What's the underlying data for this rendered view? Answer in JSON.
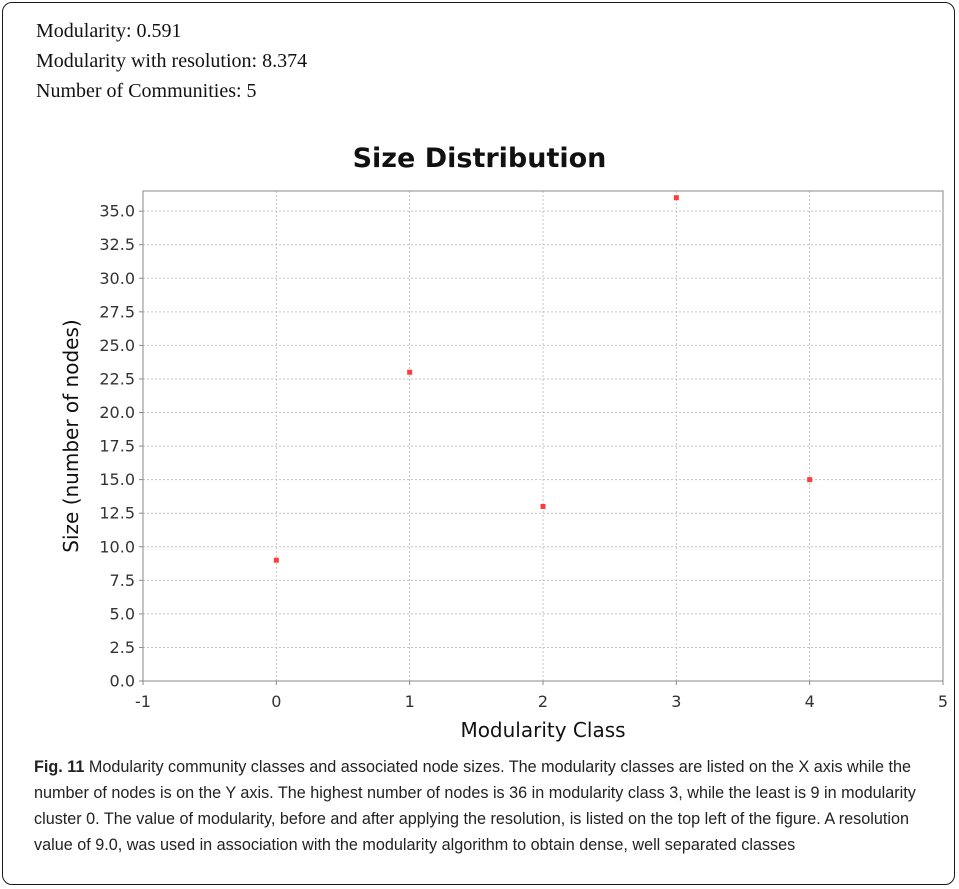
{
  "stats": {
    "modularity": "Modularity: 0.591",
    "modularity_resolution": "Modularity with resolution: 8.374",
    "communities": "Number of Communities: 5"
  },
  "chart_data": {
    "type": "scatter",
    "title": "Size Distribution",
    "xlabel": "Modularity Class",
    "ylabel": "Size (number of nodes)",
    "xlim": [
      -1,
      5
    ],
    "ylim": [
      0,
      36.5
    ],
    "xticks": [
      -1,
      0,
      1,
      2,
      3,
      4,
      5
    ],
    "yticks": [
      0.0,
      2.5,
      5.0,
      7.5,
      10.0,
      12.5,
      15.0,
      17.5,
      20.0,
      22.5,
      25.0,
      27.5,
      30.0,
      32.5,
      35.0
    ],
    "grid": true,
    "point_color": "#ff3b3b",
    "points": [
      {
        "x": 0,
        "y": 9
      },
      {
        "x": 1,
        "y": 23
      },
      {
        "x": 2,
        "y": 13
      },
      {
        "x": 3,
        "y": 36
      },
      {
        "x": 4,
        "y": 15
      }
    ]
  },
  "caption": {
    "figure_label": "Fig. 11",
    "text": " Modularity community classes and associated node sizes. The modularity classes are listed on the X axis while the number of nodes is on the Y axis. The highest number of nodes is 36 in modularity class 3, while the least is 9 in modularity cluster 0. The value of modularity, before and after applying the resolution, is listed on the top left of the figure. A resolution value of 9.0, was used in association with the modularity algorithm to obtain dense, well separated classes"
  }
}
